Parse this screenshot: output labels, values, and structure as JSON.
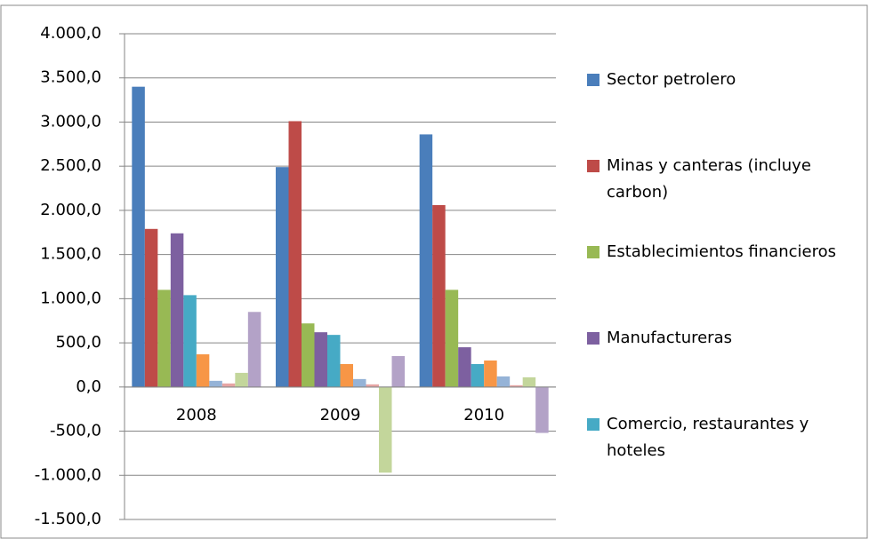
{
  "chart_data": {
    "type": "bar",
    "categories": [
      "2008",
      "2009",
      "2010"
    ],
    "series": [
      {
        "name": "Sector petrolero",
        "color": "#4a7ebb",
        "values": [
          3400,
          2490,
          2860
        ]
      },
      {
        "name": "Minas y canteras (incluye carbon)",
        "color": "#be4b48",
        "values": [
          1790,
          3010,
          2060
        ]
      },
      {
        "name": "Establecimientos financieros",
        "color": "#98b954",
        "values": [
          1100,
          720,
          1100
        ]
      },
      {
        "name": "Manufactureras",
        "color": "#7d60a0",
        "values": [
          1740,
          620,
          450
        ]
      },
      {
        "name": "Comercio, restaurantes y hoteles",
        "color": "#46aac5",
        "values": [
          1040,
          590,
          260
        ]
      },
      {
        "color": "#f79646",
        "values": [
          370,
          260,
          300
        ]
      },
      {
        "color": "#95b3d7",
        "values": [
          70,
          90,
          120
        ]
      },
      {
        "color": "#e6a5a4",
        "values": [
          40,
          30,
          20
        ]
      },
      {
        "color": "#c3d69b",
        "values": [
          160,
          -970,
          110
        ]
      },
      {
        "color": "#b3a2c7",
        "values": [
          850,
          350,
          -520
        ]
      }
    ],
    "ylim": [
      -1500,
      4000
    ],
    "yticks": [
      {
        "value": -1500,
        "label": "-1.500,0"
      },
      {
        "value": -1000,
        "label": "-1.000,0"
      },
      {
        "value": -500,
        "label": "-500,0"
      },
      {
        "value": 0,
        "label": "0,0"
      },
      {
        "value": 500,
        "label": "500,0"
      },
      {
        "value": 1000,
        "label": "1.000,0"
      },
      {
        "value": 1500,
        "label": "1.500,0"
      },
      {
        "value": 2000,
        "label": "2.000,0"
      },
      {
        "value": 2500,
        "label": "2.500,0"
      },
      {
        "value": 3000,
        "label": "3.000,0"
      },
      {
        "value": 3500,
        "label": "3.500,0"
      },
      {
        "value": 4000,
        "label": "4.000,0"
      }
    ],
    "grid": true,
    "legend": "right"
  }
}
